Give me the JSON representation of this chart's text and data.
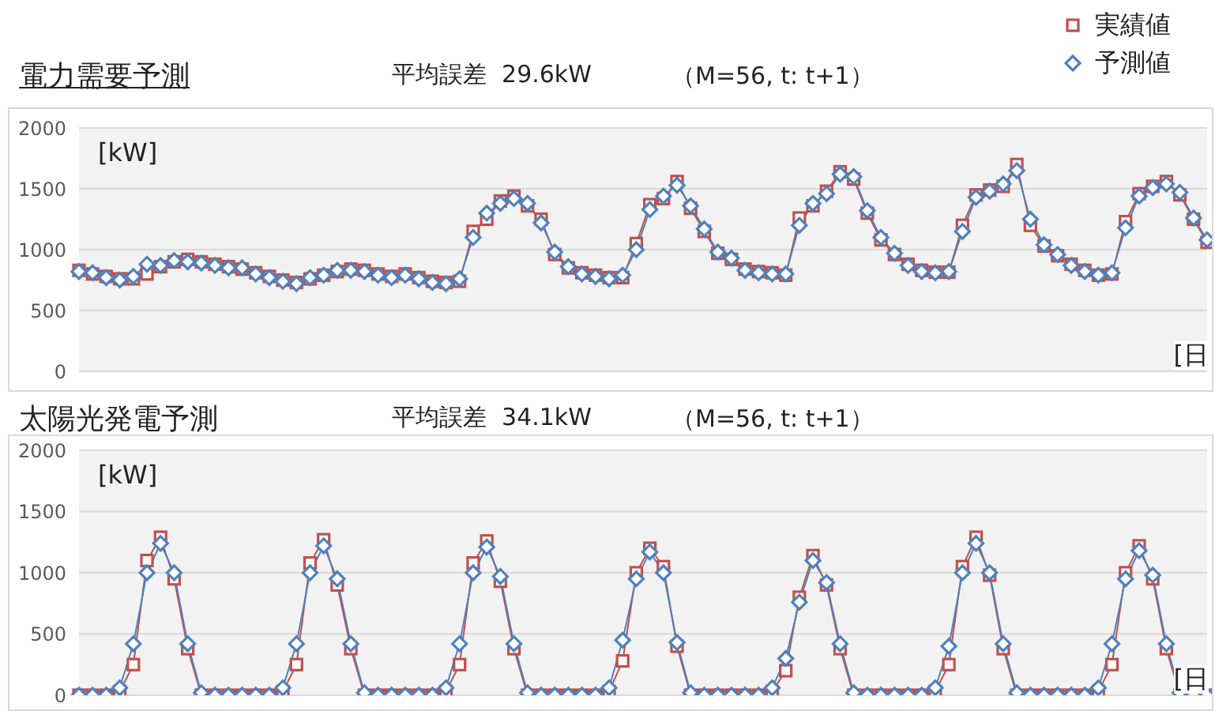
{
  "chart_data": [
    {
      "type": "line",
      "title": "電力需要予測",
      "subtitle": "平均誤差  29.6kW",
      "annotations": [
        "（M=56, t: t+1）"
      ],
      "ylabel": "[kW]",
      "xlabel": "[日",
      "categories": [
        null,
        null,
        null,
        null,
        null,
        null,
        null,
        null,
        null,
        null,
        null,
        null,
        null,
        null,
        null,
        null,
        null,
        null,
        null,
        null,
        null,
        null,
        null,
        null,
        null,
        null,
        null,
        null,
        null,
        null,
        null,
        null,
        null,
        null,
        null,
        null,
        null,
        null,
        null,
        null,
        null,
        null,
        null,
        null,
        null,
        null,
        null,
        null,
        null,
        null,
        null,
        null,
        null,
        null,
        null,
        null,
        null,
        null,
        null,
        null,
        null,
        null,
        null,
        null,
        null,
        null,
        null,
        null,
        null,
        null,
        null,
        null,
        null,
        null,
        null,
        null,
        null,
        null,
        null,
        null,
        null,
        null,
        null,
        null
      ],
      "series": [
        {
          "name": "実績値",
          "color": "#c0504d",
          "marker": "square",
          "values": [
            830,
            800,
            780,
            760,
            760,
            800,
            860,
            900,
            920,
            900,
            880,
            860,
            840,
            810,
            780,
            750,
            730,
            760,
            790,
            820,
            840,
            830,
            800,
            780,
            800,
            770,
            740,
            730,
            740,
            1150,
            1250,
            1400,
            1440,
            1360,
            1250,
            960,
            850,
            810,
            790,
            770,
            770,
            1050,
            1370,
            1420,
            1560,
            1340,
            1150,
            970,
            920,
            840,
            820,
            810,
            790,
            1260,
            1360,
            1480,
            1640,
            1580,
            1300,
            1080,
            960,
            880,
            830,
            815,
            815,
            1200,
            1450,
            1490,
            1520,
            1700,
            1200,
            1030,
            950,
            880,
            830,
            790,
            800,
            1230,
            1460,
            1520,
            1560,
            1450,
            1250,
            1060
          ]
        },
        {
          "name": "予測値",
          "color": "#4f81bd",
          "marker": "diamond",
          "values": [
            820,
            810,
            770,
            750,
            780,
            880,
            870,
            910,
            900,
            890,
            870,
            850,
            850,
            800,
            770,
            740,
            720,
            770,
            790,
            830,
            830,
            820,
            790,
            770,
            790,
            760,
            730,
            720,
            760,
            1100,
            1300,
            1380,
            1420,
            1380,
            1220,
            980,
            860,
            800,
            780,
            760,
            790,
            1000,
            1330,
            1440,
            1530,
            1360,
            1170,
            980,
            930,
            830,
            810,
            800,
            800,
            1200,
            1380,
            1460,
            1620,
            1600,
            1320,
            1100,
            970,
            870,
            820,
            810,
            820,
            1150,
            1430,
            1480,
            1540,
            1650,
            1250,
            1040,
            960,
            870,
            820,
            790,
            810,
            1180,
            1440,
            1510,
            1540,
            1470,
            1260,
            1080
          ]
        }
      ],
      "ylim": [
        0,
        2000
      ],
      "yticks": [
        0,
        500,
        1000,
        1500,
        2000
      ],
      "tick_labels": "y",
      "grid": "y",
      "legend": "top right"
    },
    {
      "type": "line",
      "title": "太陽光発電予測",
      "subtitle": "平均誤差  34.1kW",
      "annotations": [
        "（M=56, t: t+1）"
      ],
      "ylabel": "[kW]",
      "xlabel": "[日",
      "categories": [
        null,
        null,
        null,
        null,
        null,
        null,
        null,
        null,
        null,
        null,
        null,
        null,
        null,
        null,
        null,
        null,
        null,
        null,
        null,
        null,
        null,
        null,
        null,
        null,
        null,
        null,
        null,
        null,
        null,
        null,
        null,
        null,
        null,
        null,
        null,
        null,
        null,
        null,
        null,
        null,
        null,
        null,
        null,
        null,
        null,
        null,
        null,
        null,
        null,
        null,
        null,
        null,
        null,
        null,
        null,
        null,
        null,
        null,
        null,
        null,
        null,
        null,
        null,
        null,
        null,
        null,
        null,
        null,
        null,
        null,
        null,
        null,
        null,
        null,
        null,
        null,
        null,
        null,
        null,
        null,
        null,
        null,
        null,
        null
      ],
      "series": [
        {
          "color": "#c0504d",
          "marker": "square",
          "values": [
            0,
            0,
            0,
            30,
            250,
            1100,
            1290,
            950,
            380,
            0,
            0,
            0,
            0,
            0,
            0,
            30,
            250,
            1080,
            1270,
            900,
            380,
            0,
            0,
            0,
            0,
            0,
            0,
            30,
            250,
            1080,
            1260,
            930,
            380,
            0,
            0,
            0,
            0,
            0,
            0,
            30,
            280,
            1000,
            1200,
            1050,
            400,
            0,
            0,
            0,
            0,
            0,
            0,
            30,
            200,
            800,
            1140,
            900,
            380,
            0,
            0,
            0,
            0,
            0,
            0,
            30,
            250,
            1050,
            1290,
            980,
            380,
            0,
            0,
            0,
            0,
            0,
            0,
            30,
            250,
            1000,
            1220,
            950,
            380,
            0,
            0,
            0
          ]
        },
        {
          "color": "#4f81bd",
          "marker": "diamond",
          "values": [
            0,
            0,
            0,
            60,
            420,
            1000,
            1240,
            1000,
            420,
            20,
            0,
            0,
            0,
            0,
            0,
            60,
            420,
            1000,
            1220,
            950,
            420,
            20,
            0,
            0,
            0,
            0,
            0,
            60,
            420,
            1000,
            1210,
            970,
            420,
            20,
            0,
            0,
            0,
            0,
            0,
            60,
            450,
            950,
            1170,
            1000,
            430,
            20,
            0,
            0,
            0,
            0,
            0,
            60,
            300,
            760,
            1100,
            920,
            420,
            20,
            0,
            0,
            0,
            0,
            0,
            60,
            400,
            1000,
            1240,
            1000,
            420,
            20,
            0,
            0,
            0,
            0,
            0,
            60,
            420,
            950,
            1180,
            980,
            420,
            20,
            0,
            0
          ]
        }
      ],
      "ylim": [
        0,
        2000
      ],
      "yticks": [
        0,
        500,
        1000,
        1500,
        2000
      ],
      "tick_labels": "y",
      "grid": "y"
    }
  ]
}
